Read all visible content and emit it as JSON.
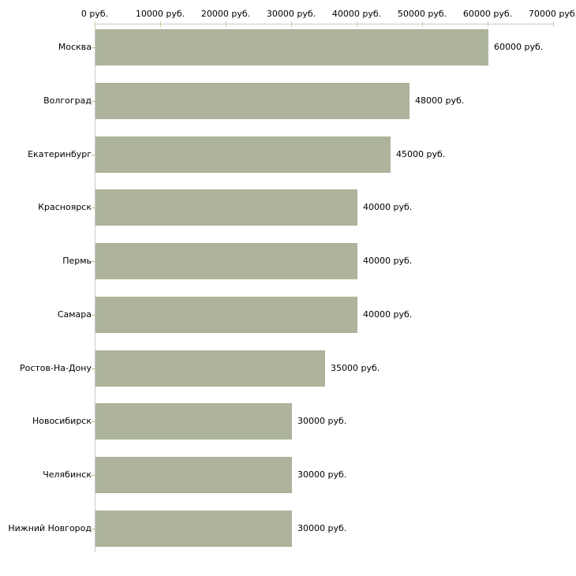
{
  "chart_data": {
    "type": "bar",
    "orientation": "horizontal",
    "title": "",
    "xlabel": "",
    "ylabel": "",
    "unit": "руб.",
    "grid": false,
    "legend": false,
    "categories": [
      "Москва",
      "Волгоград",
      "Екатеринбург",
      "Красноярск",
      "Пермь",
      "Самара",
      "Ростов-На-Дону",
      "Новосибирск",
      "Челябинск",
      "Нижний Новгород"
    ],
    "values": [
      60000,
      48000,
      45000,
      40000,
      40000,
      40000,
      35000,
      30000,
      30000,
      30000
    ],
    "value_labels": [
      "60000 руб.",
      "48000 руб.",
      "45000 руб.",
      "40000 руб.",
      "40000 руб.",
      "40000 руб.",
      "35000 руб.",
      "30000 руб.",
      "30000 руб.",
      "30000 руб."
    ],
    "x_axis": {
      "position": "top",
      "min": 0,
      "max": 70000,
      "tick_values": [
        0,
        10000,
        20000,
        30000,
        40000,
        50000,
        60000,
        70000
      ],
      "tick_labels": [
        "0 руб.",
        "10000 руб.",
        "20000 руб.",
        "30000 руб.",
        "40000 руб.",
        "50000 руб.",
        "60000 руб.",
        "70000 руб."
      ]
    },
    "colors": {
      "bar": "#adb49b",
      "axis_line": "#c9c9c9",
      "x_tick": "#cccc99",
      "category_tick": "#c6b884",
      "text": "#000000",
      "background": "#ffffff"
    }
  }
}
